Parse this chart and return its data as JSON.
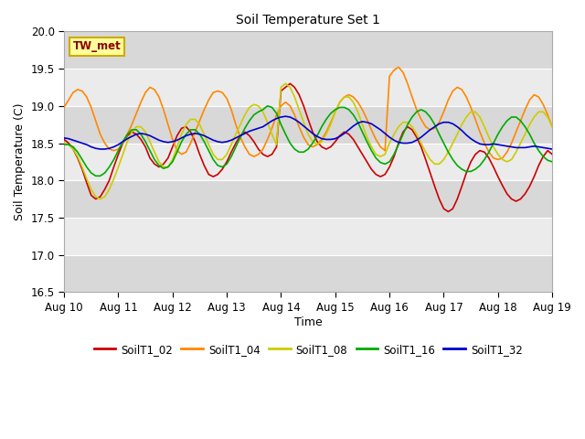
{
  "title": "Soil Temperature Set 1",
  "xlabel": "Time",
  "ylabel": "Soil Temperature (C)",
  "ylim": [
    16.5,
    20.0
  ],
  "xlim": [
    0,
    216
  ],
  "background_color": "#ffffff",
  "plot_bg_color": "#e8e8e8",
  "band_light": "#ebebeb",
  "band_dark": "#d8d8d8",
  "annotation_text": "TW_met",
  "annotation_color": "#8b0000",
  "annotation_bg": "#ffff99",
  "annotation_border": "#ccaa00",
  "series_names": [
    "SoilT1_02",
    "SoilT1_04",
    "SoilT1_08",
    "SoilT1_16",
    "SoilT1_32"
  ],
  "series_colors": [
    "#cc0000",
    "#ff8800",
    "#cccc00",
    "#00aa00",
    "#0000cc"
  ],
  "x_ticks": [
    0,
    24,
    48,
    72,
    96,
    120,
    144,
    168,
    192,
    216
  ],
  "x_tick_labels": [
    "Aug 10",
    "Aug 11",
    "Aug 12",
    "Aug 13",
    "Aug 14",
    "Aug 15",
    "Aug 16",
    "Aug 17",
    "Aug 18",
    "Aug 19"
  ],
  "y_ticks": [
    16.5,
    17.0,
    17.5,
    18.0,
    18.5,
    19.0,
    19.5,
    20.0
  ],
  "SoilT1_02_x": [
    0,
    2,
    4,
    6,
    8,
    10,
    12,
    14,
    16,
    18,
    20,
    22,
    24,
    26,
    28,
    30,
    32,
    34,
    36,
    38,
    40,
    42,
    44,
    46,
    48,
    50,
    52,
    54,
    56,
    58,
    60,
    62,
    64,
    66,
    68,
    70,
    72,
    74,
    76,
    78,
    80,
    82,
    84,
    86,
    88,
    90,
    92,
    94,
    96,
    98,
    100,
    102,
    104,
    106,
    108,
    110,
    112,
    114,
    116,
    118,
    120,
    122,
    124,
    126,
    128,
    130,
    132,
    134,
    136,
    138,
    140,
    142,
    144,
    146,
    148,
    150,
    152,
    154,
    156,
    158,
    160,
    162,
    164,
    166,
    168,
    170,
    172,
    174,
    176,
    178,
    180,
    182,
    184,
    186,
    188,
    190,
    192,
    194,
    196,
    198,
    200,
    202,
    204,
    206,
    208,
    210,
    212,
    214,
    216
  ],
  "SoilT1_02_y": [
    18.55,
    18.5,
    18.42,
    18.3,
    18.15,
    17.97,
    17.8,
    17.75,
    17.78,
    17.88,
    18.0,
    18.18,
    18.35,
    18.5,
    18.6,
    18.65,
    18.62,
    18.55,
    18.45,
    18.3,
    18.22,
    18.18,
    18.22,
    18.3,
    18.45,
    18.6,
    18.7,
    18.72,
    18.65,
    18.52,
    18.35,
    18.2,
    18.08,
    18.05,
    18.08,
    18.15,
    18.25,
    18.38,
    18.5,
    18.6,
    18.65,
    18.6,
    18.52,
    18.42,
    18.35,
    18.32,
    18.35,
    18.45,
    19.2,
    19.25,
    19.3,
    19.25,
    19.15,
    19.0,
    18.82,
    18.65,
    18.52,
    18.45,
    18.42,
    18.45,
    18.52,
    18.6,
    18.65,
    18.62,
    18.55,
    18.45,
    18.35,
    18.25,
    18.15,
    18.08,
    18.05,
    18.08,
    18.18,
    18.32,
    18.5,
    18.65,
    18.72,
    18.68,
    18.58,
    18.45,
    18.28,
    18.1,
    17.92,
    17.75,
    17.62,
    17.58,
    17.62,
    17.75,
    17.92,
    18.1,
    18.25,
    18.35,
    18.4,
    18.38,
    18.3,
    18.18,
    18.05,
    17.93,
    17.82,
    17.75,
    17.72,
    17.75,
    17.82,
    17.92,
    18.05,
    18.2,
    18.32,
    18.4,
    18.35
  ],
  "SoilT1_04_x": [
    0,
    2,
    4,
    6,
    8,
    10,
    12,
    14,
    16,
    18,
    20,
    22,
    24,
    26,
    28,
    30,
    32,
    34,
    36,
    38,
    40,
    42,
    44,
    46,
    48,
    50,
    52,
    54,
    56,
    58,
    60,
    62,
    64,
    66,
    68,
    70,
    72,
    74,
    76,
    78,
    80,
    82,
    84,
    86,
    88,
    90,
    92,
    94,
    96,
    98,
    100,
    102,
    104,
    106,
    108,
    110,
    112,
    114,
    116,
    118,
    120,
    122,
    124,
    126,
    128,
    130,
    132,
    134,
    136,
    138,
    140,
    142,
    144,
    146,
    148,
    150,
    152,
    154,
    156,
    158,
    160,
    162,
    164,
    166,
    168,
    170,
    172,
    174,
    176,
    178,
    180,
    182,
    184,
    186,
    188,
    190,
    192,
    194,
    196,
    198,
    200,
    202,
    204,
    206,
    208,
    210,
    212,
    214,
    216
  ],
  "SoilT1_04_y": [
    18.98,
    19.08,
    19.18,
    19.22,
    19.2,
    19.12,
    18.98,
    18.8,
    18.62,
    18.5,
    18.42,
    18.4,
    18.42,
    18.5,
    18.62,
    18.75,
    18.9,
    19.05,
    19.18,
    19.25,
    19.22,
    19.12,
    18.95,
    18.75,
    18.55,
    18.4,
    18.35,
    18.38,
    18.5,
    18.65,
    18.8,
    18.95,
    19.08,
    19.18,
    19.2,
    19.18,
    19.1,
    18.95,
    18.75,
    18.58,
    18.45,
    18.35,
    18.32,
    18.35,
    18.42,
    18.55,
    18.7,
    18.88,
    19.0,
    19.05,
    19.0,
    18.88,
    18.72,
    18.58,
    18.48,
    18.45,
    18.48,
    18.55,
    18.65,
    18.78,
    18.92,
    19.05,
    19.12,
    19.15,
    19.12,
    19.05,
    18.95,
    18.82,
    18.68,
    18.55,
    18.45,
    18.4,
    19.4,
    19.48,
    19.52,
    19.45,
    19.3,
    19.12,
    18.95,
    18.82,
    18.72,
    18.68,
    18.7,
    18.78,
    18.92,
    19.08,
    19.2,
    19.25,
    19.22,
    19.12,
    18.98,
    18.82,
    18.65,
    18.5,
    18.38,
    18.3,
    18.28,
    18.3,
    18.38,
    18.5,
    18.65,
    18.8,
    18.95,
    19.08,
    19.15,
    19.12,
    19.02,
    18.88,
    18.72
  ],
  "SoilT1_08_x": [
    0,
    2,
    4,
    6,
    8,
    10,
    12,
    14,
    16,
    18,
    20,
    22,
    24,
    26,
    28,
    30,
    32,
    34,
    36,
    38,
    40,
    42,
    44,
    46,
    48,
    50,
    52,
    54,
    56,
    58,
    60,
    62,
    64,
    66,
    68,
    70,
    72,
    74,
    76,
    78,
    80,
    82,
    84,
    86,
    88,
    90,
    92,
    94,
    96,
    98,
    100,
    102,
    104,
    106,
    108,
    110,
    112,
    114,
    116,
    118,
    120,
    122,
    124,
    126,
    128,
    130,
    132,
    134,
    136,
    138,
    140,
    142,
    144,
    146,
    148,
    150,
    152,
    154,
    156,
    158,
    160,
    162,
    164,
    166,
    168,
    170,
    172,
    174,
    176,
    178,
    180,
    182,
    184,
    186,
    188,
    190,
    192,
    194,
    196,
    198,
    200,
    202,
    204,
    206,
    208,
    210,
    212,
    214,
    216
  ],
  "SoilT1_08_y": [
    18.5,
    18.48,
    18.42,
    18.32,
    18.18,
    18.02,
    17.88,
    17.78,
    17.75,
    17.78,
    17.88,
    18.02,
    18.18,
    18.35,
    18.52,
    18.65,
    18.72,
    18.72,
    18.65,
    18.52,
    18.38,
    18.25,
    18.18,
    18.18,
    18.28,
    18.45,
    18.62,
    18.75,
    18.82,
    18.82,
    18.75,
    18.62,
    18.48,
    18.35,
    18.28,
    18.28,
    18.35,
    18.48,
    18.62,
    18.75,
    18.88,
    18.98,
    19.02,
    19.0,
    18.92,
    18.78,
    18.62,
    18.48,
    19.25,
    19.3,
    19.25,
    19.12,
    18.95,
    18.78,
    18.62,
    18.52,
    18.48,
    18.52,
    18.62,
    18.75,
    18.92,
    19.05,
    19.12,
    19.12,
    19.05,
    18.92,
    18.75,
    18.58,
    18.45,
    18.35,
    18.32,
    18.35,
    18.5,
    18.62,
    18.72,
    18.78,
    18.78,
    18.72,
    18.62,
    18.5,
    18.38,
    18.28,
    18.22,
    18.22,
    18.28,
    18.38,
    18.5,
    18.62,
    18.75,
    18.85,
    18.92,
    18.92,
    18.85,
    18.72,
    18.58,
    18.45,
    18.35,
    18.28,
    18.25,
    18.28,
    18.38,
    18.5,
    18.62,
    18.75,
    18.85,
    18.92,
    18.92,
    18.85,
    18.72
  ],
  "SoilT1_16_x": [
    0,
    2,
    4,
    6,
    8,
    10,
    12,
    14,
    16,
    18,
    20,
    22,
    24,
    26,
    28,
    30,
    32,
    34,
    36,
    38,
    40,
    42,
    44,
    46,
    48,
    50,
    52,
    54,
    56,
    58,
    60,
    62,
    64,
    66,
    68,
    70,
    72,
    74,
    76,
    78,
    80,
    82,
    84,
    86,
    88,
    90,
    92,
    94,
    96,
    98,
    100,
    102,
    104,
    106,
    108,
    110,
    112,
    114,
    116,
    118,
    120,
    122,
    124,
    126,
    128,
    130,
    132,
    134,
    136,
    138,
    140,
    142,
    144,
    146,
    148,
    150,
    152,
    154,
    156,
    158,
    160,
    162,
    164,
    166,
    168,
    170,
    172,
    174,
    176,
    178,
    180,
    182,
    184,
    186,
    188,
    190,
    192,
    194,
    196,
    198,
    200,
    202,
    204,
    206,
    208,
    210,
    212,
    214,
    216
  ],
  "SoilT1_16_y": [
    18.48,
    18.48,
    18.45,
    18.38,
    18.28,
    18.18,
    18.1,
    18.06,
    18.06,
    18.1,
    18.18,
    18.28,
    18.4,
    18.52,
    18.62,
    18.68,
    18.68,
    18.62,
    18.52,
    18.4,
    18.28,
    18.2,
    18.16,
    18.18,
    18.25,
    18.38,
    18.52,
    18.62,
    18.68,
    18.68,
    18.62,
    18.52,
    18.4,
    18.28,
    18.2,
    18.18,
    18.22,
    18.32,
    18.45,
    18.58,
    18.7,
    18.8,
    18.88,
    18.92,
    18.95,
    19.0,
    18.98,
    18.9,
    18.75,
    18.62,
    18.5,
    18.42,
    18.38,
    18.38,
    18.42,
    18.5,
    18.6,
    18.72,
    18.82,
    18.9,
    18.95,
    18.98,
    18.98,
    18.95,
    18.88,
    18.78,
    18.65,
    18.52,
    18.4,
    18.3,
    18.24,
    18.22,
    18.25,
    18.35,
    18.48,
    18.62,
    18.75,
    18.85,
    18.92,
    18.95,
    18.92,
    18.85,
    18.75,
    18.62,
    18.5,
    18.38,
    18.28,
    18.2,
    18.15,
    18.12,
    18.12,
    18.15,
    18.2,
    18.28,
    18.38,
    18.5,
    18.62,
    18.72,
    18.8,
    18.85,
    18.85,
    18.8,
    18.72,
    18.62,
    18.5,
    18.4,
    18.32,
    18.27,
    18.25
  ],
  "SoilT1_32_x": [
    0,
    2,
    4,
    6,
    8,
    10,
    12,
    14,
    16,
    18,
    20,
    22,
    24,
    26,
    28,
    30,
    32,
    34,
    36,
    38,
    40,
    42,
    44,
    46,
    48,
    50,
    52,
    54,
    56,
    58,
    60,
    62,
    64,
    66,
    68,
    70,
    72,
    74,
    76,
    78,
    80,
    82,
    84,
    86,
    88,
    90,
    92,
    94,
    96,
    98,
    100,
    102,
    104,
    106,
    108,
    110,
    112,
    114,
    116,
    118,
    120,
    122,
    124,
    126,
    128,
    130,
    132,
    134,
    136,
    138,
    140,
    142,
    144,
    146,
    148,
    150,
    152,
    154,
    156,
    158,
    160,
    162,
    164,
    166,
    168,
    170,
    172,
    174,
    176,
    178,
    180,
    182,
    184,
    186,
    188,
    190,
    192,
    194,
    196,
    198,
    200,
    202,
    204,
    206,
    208,
    210,
    212,
    214,
    216
  ],
  "SoilT1_32_y": [
    18.57,
    18.56,
    18.54,
    18.52,
    18.5,
    18.48,
    18.45,
    18.43,
    18.42,
    18.42,
    18.43,
    18.45,
    18.48,
    18.52,
    18.56,
    18.59,
    18.62,
    18.63,
    18.62,
    18.6,
    18.57,
    18.54,
    18.52,
    18.51,
    18.52,
    18.54,
    18.57,
    18.6,
    18.62,
    18.63,
    18.62,
    18.6,
    18.57,
    18.54,
    18.52,
    18.51,
    18.52,
    18.54,
    18.57,
    18.6,
    18.63,
    18.66,
    18.68,
    18.7,
    18.72,
    18.76,
    18.8,
    18.83,
    18.85,
    18.86,
    18.85,
    18.82,
    18.78,
    18.73,
    18.68,
    18.63,
    18.59,
    18.56,
    18.55,
    18.55,
    18.56,
    18.59,
    18.63,
    18.68,
    18.73,
    18.77,
    18.79,
    18.78,
    18.76,
    18.72,
    18.68,
    18.63,
    18.58,
    18.54,
    18.51,
    18.5,
    18.5,
    18.51,
    18.54,
    18.58,
    18.63,
    18.68,
    18.72,
    18.76,
    18.78,
    18.78,
    18.76,
    18.72,
    18.67,
    18.61,
    18.56,
    18.52,
    18.49,
    18.48,
    18.48,
    18.49,
    18.48,
    18.47,
    18.46,
    18.45,
    18.44,
    18.44,
    18.44,
    18.45,
    18.46,
    18.45,
    18.44,
    18.43,
    18.42
  ]
}
